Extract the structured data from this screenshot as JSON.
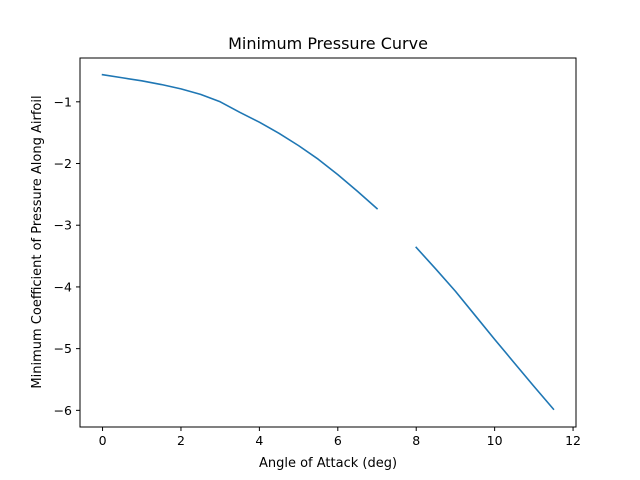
{
  "chart_data": {
    "type": "line",
    "title": "Minimum Pressure Curve",
    "xlabel": "Angle of Attack (deg)",
    "ylabel": "Minimum Coefficient of Pressure Along Airfoil",
    "xlim": [
      -0.575,
      12.075
    ],
    "ylim": [
      -6.27,
      -0.29
    ],
    "x_ticks": [
      0,
      2,
      4,
      6,
      8,
      10,
      12
    ],
    "x_tick_labels": [
      "0",
      "2",
      "4",
      "6",
      "8",
      "10",
      "12"
    ],
    "y_ticks": [
      -1,
      -2,
      -3,
      -4,
      -5,
      -6
    ],
    "y_tick_labels": [
      "−1",
      "−2",
      "−3",
      "−4",
      "−5",
      "−6"
    ],
    "grid": false,
    "legend": "none",
    "line_color": "#1f77b4",
    "series": [
      {
        "x": [
          0,
          0.5,
          1,
          1.5,
          2,
          2.5,
          3,
          3.5,
          4,
          4.5,
          5,
          5.5,
          6,
          6.5,
          7
        ],
        "y": [
          -0.56,
          -0.61,
          -0.66,
          -0.72,
          -0.79,
          -0.88,
          -1.0,
          -1.17,
          -1.33,
          -1.51,
          -1.71,
          -1.93,
          -2.18,
          -2.45,
          -2.73
        ]
      },
      {
        "x": [
          8,
          8.5,
          9,
          9.5,
          10,
          10.5,
          11,
          11.5
        ],
        "y": [
          -3.36,
          -3.71,
          -4.07,
          -4.46,
          -4.85,
          -5.23,
          -5.61,
          -5.98
        ]
      }
    ]
  }
}
